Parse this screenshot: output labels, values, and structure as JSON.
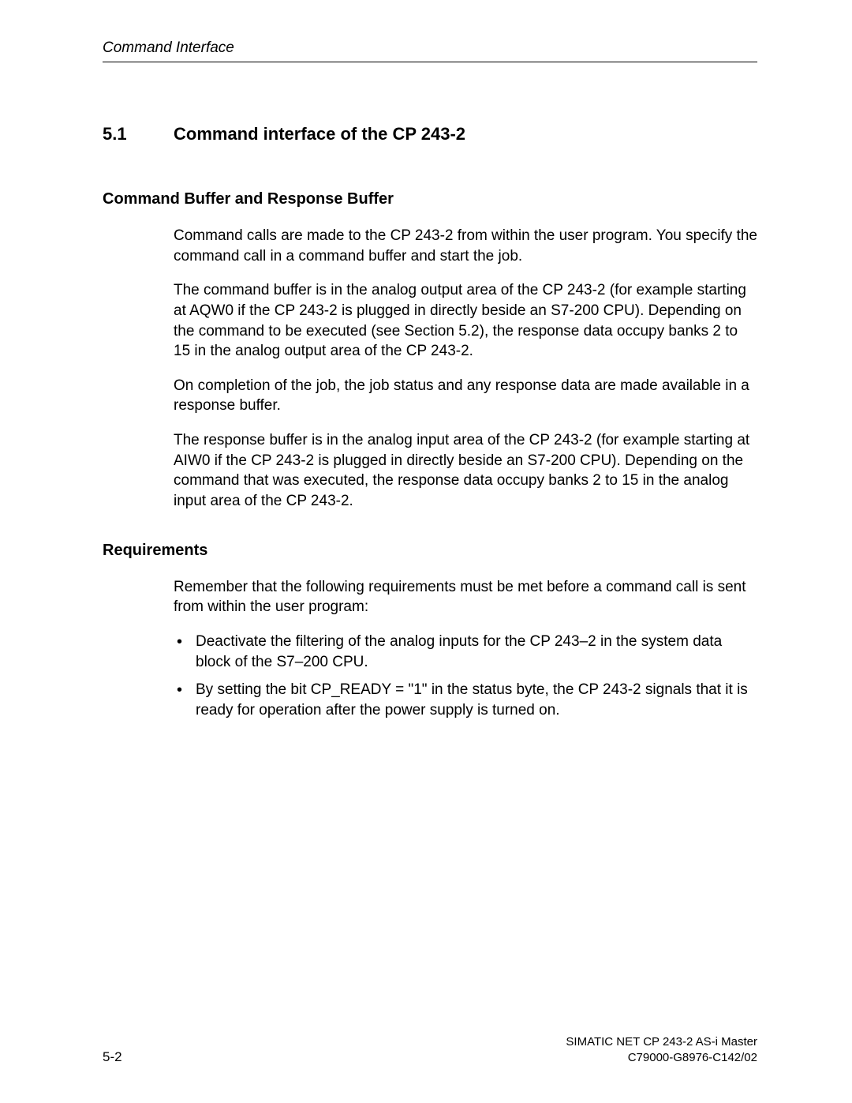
{
  "header": {
    "title": "Command Interface"
  },
  "section": {
    "number": "5.1",
    "title": "Command interface of the CP  243-2"
  },
  "sub1": {
    "heading": "Command Buffer and Response Buffer",
    "p1": "Command calls are made to the CP  243-2 from within the user program. You specify the command call in a command buffer and start the job.",
    "p2": "The command buffer is in the analog output area of the CP  243-2 (for example starting at AQW0 if the CP  243-2 is plugged in directly beside an S7-200 CPU). Depending on the command to be executed (see Section 5.2), the response data occupy banks 2 to 15 in the analog output area of the CP  243-2.",
    "p3": "On completion of the job, the job status and any response data are made available in a response buffer.",
    "p4": "The response buffer is in the analog input area of the CP 243-2 (for example starting at AIW0 if the CP  243-2 is plugged in directly beside an S7-200 CPU). Depending on the command that was executed, the response data occupy banks 2 to 15 in the analog input area of the CP  243-2."
  },
  "sub2": {
    "heading": "Requirements",
    "p1": "Remember that the following requirements must be met before a command call is sent from within the user program:",
    "bullet1": "Deactivate the filtering of the analog inputs for the CP 243–2 in the system data block of the S7–200 CPU.",
    "bullet2": "By setting the bit CP_READY = \"1\" in the status byte, the CP  243-2 signals that it is ready for operation after the power supply is turned on."
  },
  "footer": {
    "page": "5-2",
    "doc_title": "SIMATIC NET CP 243-2 AS-i Master",
    "doc_code": "C79000-G8976-C142/02"
  }
}
